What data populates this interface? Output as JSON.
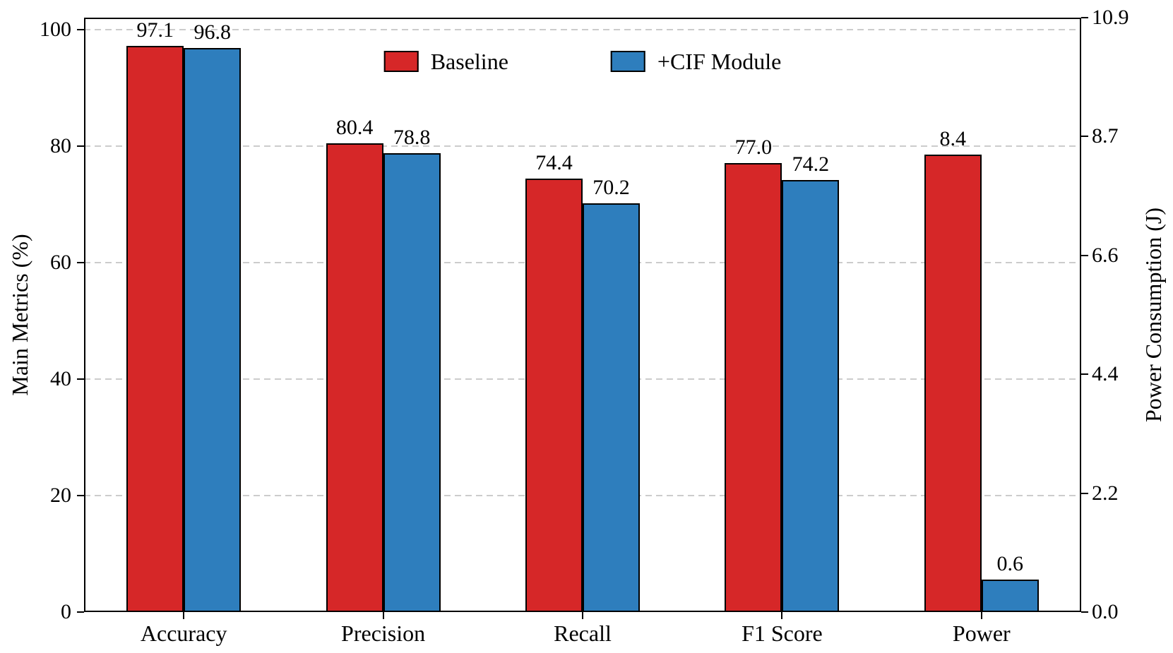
{
  "chart_data": {
    "type": "bar",
    "title": "",
    "categories": [
      "Accuracy",
      "Precision",
      "Recall",
      "F1 Score",
      "Power"
    ],
    "series": [
      {
        "name": "Baseline",
        "color": "#d62728",
        "values": [
          97.1,
          80.4,
          74.4,
          77.0,
          8.4
        ]
      },
      {
        "name": "+CIF Module",
        "color": "#2e7ebd",
        "values": [
          96.8,
          78.8,
          70.2,
          74.2,
          0.6
        ]
      }
    ],
    "value_label_decimals": 1,
    "left_axis": {
      "label": "Main Metrics (%)",
      "max": 102,
      "ticks": [
        {
          "value": 0,
          "label": "0"
        },
        {
          "value": 20,
          "label": "20"
        },
        {
          "value": 40,
          "label": "40"
        },
        {
          "value": 60,
          "label": "60"
        },
        {
          "value": 80,
          "label": "80"
        },
        {
          "value": 100,
          "label": "100"
        }
      ],
      "grid": true
    },
    "right_axis": {
      "label": "Power Consumption (J)",
      "max": 10.92,
      "ticks": [
        {
          "value": 0,
          "label": "0.0"
        },
        {
          "value": 2.184,
          "label": "2.2"
        },
        {
          "value": 4.368,
          "label": "4.4"
        },
        {
          "value": 6.552,
          "label": "6.6"
        },
        {
          "value": 8.736,
          "label": "8.7"
        },
        {
          "value": 10.92,
          "label": "10.9"
        }
      ]
    },
    "right_axis_categories": [
      "Power"
    ],
    "legend": {
      "position": "upper center",
      "entries": [
        "Baseline",
        "+CIF Module"
      ]
    },
    "layout_hints": {
      "grid": "dashed horizontal from left axis ticks",
      "bar_edge_color": "#000000",
      "grid_color": "#cccccc",
      "background": "#ffffff"
    }
  }
}
